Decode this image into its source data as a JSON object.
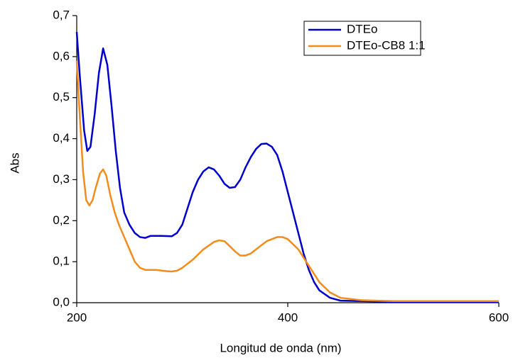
{
  "chart_data": {
    "type": "line",
    "xlabel": "Longitud de onda (nm)",
    "ylabel": "Abs",
    "xlim": [
      200,
      600
    ],
    "ylim": [
      0,
      0.7
    ],
    "xticks": [
      200,
      400,
      600
    ],
    "yticks": [
      {
        "value": 0,
        "label": "0,0"
      },
      {
        "value": 0.1,
        "label": "0,1"
      },
      {
        "value": 0.2,
        "label": "0,2"
      },
      {
        "value": 0.3,
        "label": "0,3"
      },
      {
        "value": 0.4,
        "label": "0,4"
      },
      {
        "value": 0.5,
        "label": "0,5"
      },
      {
        "value": 0.6,
        "label": "0,6"
      },
      {
        "value": 0.7,
        "label": "0,7"
      }
    ],
    "legend": "top-right",
    "series": [
      {
        "name": "DTEo",
        "color": "#0000cc",
        "x": [
          200,
          203,
          207,
          210,
          213,
          217,
          221,
          225,
          229,
          233,
          237,
          241,
          245,
          250,
          255,
          260,
          265,
          270,
          280,
          290,
          295,
          300,
          305,
          310,
          315,
          320,
          325,
          330,
          335,
          340,
          345,
          350,
          355,
          360,
          365,
          370,
          375,
          380,
          385,
          390,
          395,
          400,
          405,
          410,
          415,
          420,
          425,
          430,
          440,
          450,
          500,
          550,
          600
        ],
        "values": [
          0.66,
          0.55,
          0.42,
          0.37,
          0.38,
          0.46,
          0.56,
          0.62,
          0.58,
          0.48,
          0.37,
          0.28,
          0.22,
          0.19,
          0.17,
          0.16,
          0.158,
          0.163,
          0.163,
          0.162,
          0.17,
          0.19,
          0.23,
          0.27,
          0.3,
          0.32,
          0.33,
          0.325,
          0.31,
          0.29,
          0.28,
          0.282,
          0.3,
          0.33,
          0.355,
          0.375,
          0.387,
          0.388,
          0.38,
          0.36,
          0.32,
          0.27,
          0.22,
          0.17,
          0.12,
          0.08,
          0.05,
          0.03,
          0.012,
          0.005,
          0.002,
          0.002,
          0.002
        ]
      },
      {
        "name": "DTEo-CB8 1:1",
        "color": "#f28c1c",
        "x": [
          200,
          203,
          206,
          209,
          212,
          215,
          218,
          222,
          225,
          228,
          232,
          236,
          240,
          245,
          250,
          255,
          260,
          265,
          275,
          285,
          290,
          295,
          300,
          310,
          320,
          330,
          335,
          340,
          345,
          350,
          355,
          360,
          365,
          370,
          380,
          390,
          395,
          400,
          410,
          420,
          430,
          440,
          450,
          470,
          500,
          600
        ],
        "values": [
          0.59,
          0.45,
          0.32,
          0.25,
          0.237,
          0.25,
          0.28,
          0.315,
          0.325,
          0.31,
          0.26,
          0.22,
          0.19,
          0.16,
          0.13,
          0.1,
          0.085,
          0.08,
          0.08,
          0.077,
          0.076,
          0.078,
          0.085,
          0.105,
          0.13,
          0.148,
          0.152,
          0.15,
          0.138,
          0.125,
          0.115,
          0.115,
          0.12,
          0.13,
          0.15,
          0.16,
          0.16,
          0.155,
          0.13,
          0.09,
          0.05,
          0.025,
          0.012,
          0.006,
          0.004,
          0.004
        ]
      }
    ]
  }
}
